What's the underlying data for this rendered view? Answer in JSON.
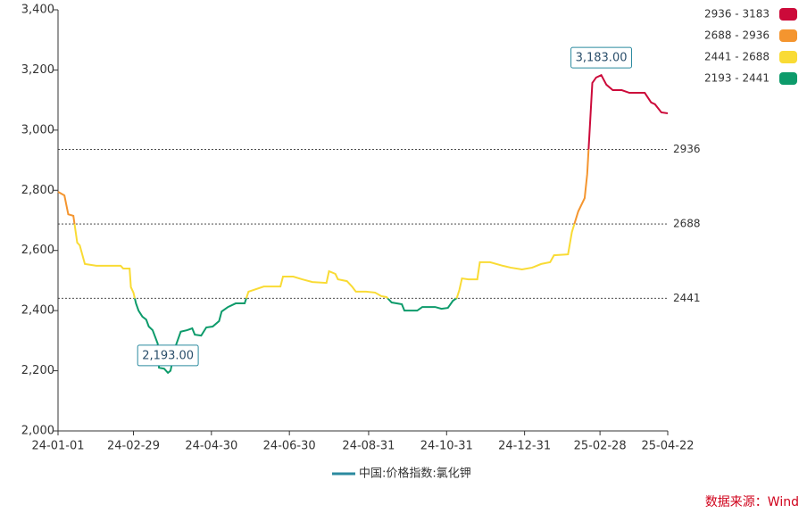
{
  "chart_data": {
    "type": "line",
    "x": [
      "24-01-01",
      "24-01-06",
      "24-01-09",
      "24-01-13",
      "24-01-16",
      "24-01-18",
      "24-01-22",
      "24-01-31",
      "24-02-19",
      "24-02-21",
      "24-02-26",
      "24-02-27",
      "24-02-29",
      "24-03-02",
      "24-03-04",
      "24-03-07",
      "24-03-10",
      "24-03-12",
      "24-03-15",
      "24-03-19",
      "24-03-20",
      "24-03-24",
      "24-03-27",
      "24-03-29",
      "24-04-02",
      "24-04-06",
      "24-04-11",
      "24-04-15",
      "24-04-17",
      "24-04-22",
      "24-04-26",
      "24-05-01",
      "24-05-06",
      "24-05-08",
      "24-05-13",
      "24-05-19",
      "24-05-26",
      "24-05-29",
      "24-06-10",
      "24-06-23",
      "24-06-25",
      "24-07-03",
      "24-07-10",
      "24-07-18",
      "24-07-29",
      "24-07-31",
      "24-08-05",
      "24-08-07",
      "24-08-14",
      "24-08-18",
      "24-08-21",
      "24-08-29",
      "24-09-05",
      "24-09-10",
      "24-09-14",
      "24-09-18",
      "24-09-26",
      "24-09-28",
      "24-10-08",
      "24-10-12",
      "24-10-22",
      "24-10-27",
      "24-11-01",
      "24-11-05",
      "24-11-08",
      "24-11-10",
      "24-11-12",
      "24-11-17",
      "24-11-24",
      "24-11-26",
      "24-12-04",
      "24-12-14",
      "24-12-20",
      "24-12-29",
      "25-01-06",
      "25-01-13",
      "25-01-20",
      "25-01-23",
      "25-02-03",
      "25-02-06",
      "25-02-11",
      "25-02-16",
      "25-02-18",
      "25-02-22",
      "25-02-25",
      "25-03-01",
      "25-03-05",
      "25-03-10",
      "25-03-17",
      "25-03-23",
      "25-04-04",
      "25-04-09",
      "25-04-12",
      "25-04-17",
      "25-04-22"
    ],
    "series": [
      {
        "name": "中国:价格指数:氯化钾",
        "color": "#2b8a9f",
        "values": [
          2795,
          2783,
          2720,
          2715,
          2626,
          2617,
          2555,
          2549,
          2549,
          2540,
          2540,
          2478,
          2460,
          2424,
          2400,
          2380,
          2370,
          2347,
          2335,
          2290,
          2210,
          2207,
          2193,
          2200,
          2282,
          2330,
          2335,
          2341,
          2320,
          2317,
          2344,
          2347,
          2365,
          2397,
          2412,
          2424,
          2424,
          2463,
          2480,
          2480,
          2513,
          2513,
          2504,
          2495,
          2492,
          2531,
          2522,
          2504,
          2498,
          2480,
          2463,
          2463,
          2460,
          2448,
          2445,
          2427,
          2421,
          2400,
          2400,
          2412,
          2412,
          2406,
          2409,
          2433,
          2442,
          2469,
          2507,
          2504,
          2504,
          2561,
          2561,
          2549,
          2543,
          2537,
          2543,
          2555,
          2561,
          2584,
          2587,
          2661,
          2730,
          2774,
          2854,
          3157,
          3175,
          3183,
          3151,
          3133,
          3133,
          3124,
          3124,
          3092,
          3086,
          3059,
          3056
        ]
      }
    ],
    "xlim": [
      "24-01-01",
      "25-04-22"
    ],
    "xticks": [
      "24-01-01",
      "24-02-29",
      "24-04-30",
      "24-06-30",
      "24-08-31",
      "24-10-31",
      "24-12-31",
      "25-02-28",
      "25-04-22"
    ],
    "ylim": [
      2000,
      3400
    ],
    "yticks": [
      {
        "value": 2000,
        "label": "2,000"
      },
      {
        "value": 2200,
        "label": "2,200"
      },
      {
        "value": 2400,
        "label": "2,400"
      },
      {
        "value": 2600,
        "label": "2,600"
      },
      {
        "value": 2800,
        "label": "2,800"
      },
      {
        "value": 3000,
        "label": "3,000"
      },
      {
        "value": 3200,
        "label": "3,200"
      },
      {
        "value": 3400,
        "label": "3,400"
      }
    ],
    "pieces": [
      {
        "label": "2936 - 3183",
        "min": 2936,
        "max": 3183,
        "color": "#cc0a3a"
      },
      {
        "label": "2688 - 2936",
        "min": 2688,
        "max": 2936,
        "color": "#f4952f"
      },
      {
        "label": "2441 - 2688",
        "min": 2441,
        "max": 2688,
        "color": "#f9db35"
      },
      {
        "label": "2193 - 2441",
        "min": 2193,
        "max": 2441,
        "color": "#0d9b6b"
      }
    ],
    "reference_lines": [
      2936,
      2688,
      2441
    ],
    "annotations": [
      {
        "label": "3,183.00",
        "value": 3183,
        "x": "25-03-01"
      },
      {
        "label": "2,193.00",
        "value": 2193,
        "x": "24-03-27"
      }
    ],
    "source": "数据来源：Wind"
  }
}
